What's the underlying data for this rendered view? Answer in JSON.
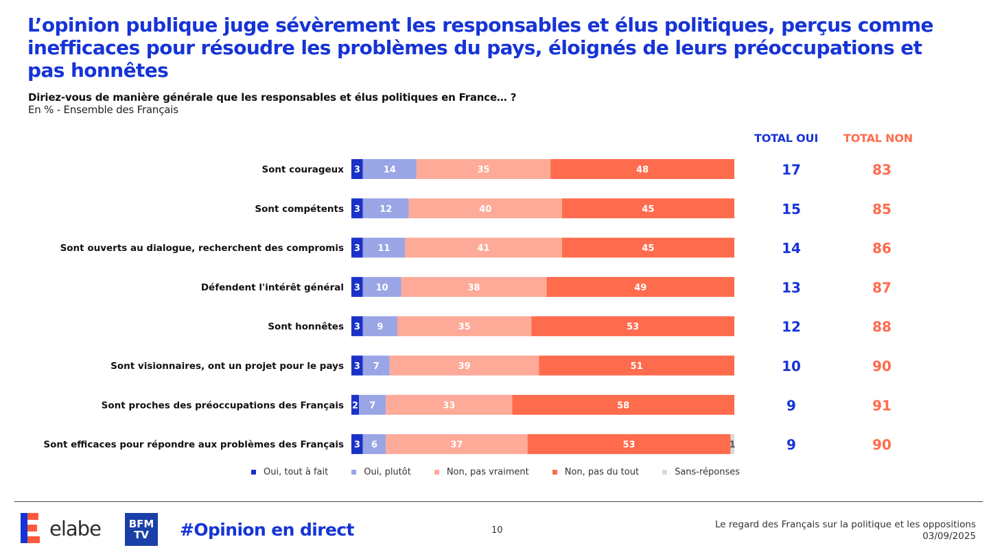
{
  "header": {
    "title": "L’opinion publique juge sévèrement les responsables et élus politiques, perçus comme inefficaces pour résoudre les problèmes du pays, éloignés de leurs préoccupations et pas honnêtes",
    "question": "Diriez-vous de manière générale que les responsables et élus politiques en France… ?",
    "subtitle": "En % - Ensemble des Français"
  },
  "totals_header": {
    "oui": "TOTAL OUI",
    "non": "TOTAL NON"
  },
  "colors": {
    "oui_tout_a_fait": "#1a32c8",
    "oui_plutot": "#9aa5e6",
    "non_pas_vraiment": "#fdaa98",
    "non_pas_du_tout": "#ff6b4d",
    "sans_reponse": "#d9d9d9",
    "total_oui": "#1634d6",
    "total_non": "#ff6b4d"
  },
  "chart_data": {
    "type": "bar",
    "orientation": "horizontal",
    "stacked": true,
    "title": "Diriez-vous de manière générale que les responsables et élus politiques en France… ?",
    "unit": "En %",
    "categories": [
      "Sont courageux",
      "Sont compétents",
      "Sont ouverts au dialogue, recherchent des compromis",
      "Défendent l'intérêt général",
      "Sont honnêtes",
      "Sont visionnaires, ont un projet pour le pays",
      "Sont proches des préoccupations des Français",
      "Sont efficaces pour répondre aux problèmes des Français"
    ],
    "series": [
      {
        "name": "Oui, tout à fait",
        "values": [
          3,
          3,
          3,
          3,
          3,
          3,
          2,
          3
        ]
      },
      {
        "name": "Oui, plutôt",
        "values": [
          14,
          12,
          11,
          10,
          9,
          7,
          7,
          6
        ]
      },
      {
        "name": "Non, pas vraiment",
        "values": [
          35,
          40,
          41,
          38,
          35,
          39,
          33,
          37
        ]
      },
      {
        "name": "Non, pas du tout",
        "values": [
          48,
          45,
          45,
          49,
          53,
          51,
          58,
          53
        ]
      },
      {
        "name": "Sans-réponses",
        "values": [
          0,
          0,
          0,
          0,
          0,
          0,
          0,
          1
        ]
      }
    ],
    "total_oui": [
      17,
      15,
      14,
      13,
      12,
      10,
      9,
      9
    ],
    "total_non": [
      83,
      85,
      86,
      87,
      88,
      90,
      91,
      90
    ],
    "xlim": [
      0,
      100
    ],
    "legend_position": "bottom"
  },
  "legend": [
    {
      "label": "Oui, tout à fait",
      "color": "#1a32c8"
    },
    {
      "label": "Oui, plutôt",
      "color": "#9aa5e6"
    },
    {
      "label": "Non, pas vraiment",
      "color": "#fdaa98"
    },
    {
      "label": "Non, pas du tout",
      "color": "#ff6b4d"
    },
    {
      "label": "Sans-réponses",
      "color": "#d9d9d9"
    }
  ],
  "footer": {
    "brand": "elabe",
    "partner_logo": "BFM TV",
    "hashtag": "#Opinion en direct",
    "page_number": "10",
    "study_title": "Le regard des Français sur la politique et les oppositions",
    "date": "03/09/2025"
  }
}
